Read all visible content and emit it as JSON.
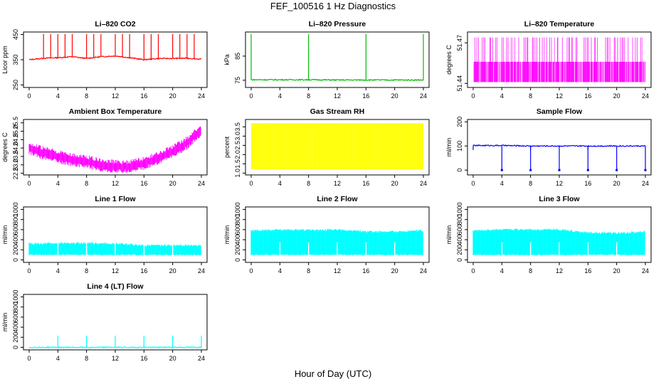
{
  "page": {
    "title": "FEF_100516  1 Hz Diagnostics",
    "xlabel": "Hour of Day (UTC)"
  },
  "chart_data": [
    {
      "id": "li820-co2",
      "type": "line",
      "title": "Li–820 CO2",
      "ylabel": "Licor ppm",
      "color": "#ff0000",
      "xlim": [
        0,
        24
      ],
      "ylim": [
        240,
        460
      ],
      "xticks": [
        0,
        4,
        8,
        12,
        16,
        20,
        24
      ],
      "yticks": [
        250,
        350,
        450
      ],
      "series": [
        {
          "x": [
            0,
            2,
            4,
            6,
            8,
            10,
            12,
            14,
            16,
            18,
            20,
            22,
            24
          ],
          "y": [
            350,
            356,
            358,
            362,
            355,
            362,
            365,
            358,
            350,
            355,
            355,
            356,
            352
          ]
        }
      ],
      "spikes": [
        2,
        3,
        4,
        5,
        6,
        8,
        9,
        10,
        12,
        13,
        14,
        16,
        17,
        18,
        20,
        21,
        22,
        23
      ]
    },
    {
      "id": "li820-pressure",
      "type": "line",
      "title": "Li–820 Pressure",
      "ylabel": "kPa",
      "color": "#00bb00",
      "xlim": [
        0,
        24
      ],
      "ylim": [
        72,
        95
      ],
      "xticks": [
        0,
        4,
        8,
        12,
        16,
        20,
        24
      ],
      "yticks": [
        75,
        85
      ],
      "series": [
        {
          "x": [
            0,
            4,
            8,
            12,
            16,
            20,
            24
          ],
          "y": [
            75.2,
            75.2,
            75.2,
            75.1,
            75.1,
            75.1,
            75.1
          ]
        }
      ],
      "spikes": [
        0,
        8,
        16,
        24
      ]
    },
    {
      "id": "li820-temperature",
      "type": "line",
      "title": "Li–820 Temperature",
      "ylabel": "degrees C",
      "color": "#ff00ff",
      "xlim": [
        0,
        24
      ],
      "ylim": [
        51.437,
        51.478
      ],
      "xticks": [
        0,
        4,
        8,
        12,
        16,
        20,
        24
      ],
      "yticks": [
        51.44,
        51.47
      ],
      "series": [
        {
          "x": [
            0,
            24
          ],
          "y": [
            51.445,
            51.445
          ]
        }
      ],
      "band": [
        51.441,
        51.456
      ]
    },
    {
      "id": "ambient-box-temperature",
      "type": "line",
      "title": "Ambient Box Temperature",
      "ylabel": "degrees C",
      "color": "#ff00ff",
      "xlim": [
        0,
        24
      ],
      "ylim": [
        22.4,
        25.7
      ],
      "xticks": [
        0,
        4,
        8,
        12,
        16,
        20,
        24
      ],
      "yticks": [
        22.5,
        23.0,
        23.5,
        24.0,
        24.5,
        25.0,
        25.5
      ],
      "series": [
        {
          "x": [
            0,
            2,
            4,
            6,
            8,
            10,
            12,
            14,
            16,
            18,
            20,
            22,
            24
          ],
          "y": [
            24.0,
            23.7,
            23.5,
            23.3,
            23.2,
            23.0,
            22.9,
            22.9,
            23.1,
            23.4,
            23.8,
            24.3,
            25.1
          ]
        }
      ]
    },
    {
      "id": "gas-stream-rh",
      "type": "line",
      "title": "Gas Stream RH",
      "ylabel": "percent",
      "color": "#ffff00",
      "xlim": [
        0,
        24
      ],
      "ylim": [
        0.9,
        3.9
      ],
      "xticks": [
        0,
        4,
        8,
        12,
        16,
        20,
        24
      ],
      "yticks": [
        1.0,
        1.5,
        2.0,
        2.5,
        3.0,
        3.5
      ],
      "series": [
        {
          "x": [
            0,
            24
          ],
          "y": [
            3.5,
            3.5
          ]
        }
      ],
      "band": [
        1.2,
        3.7
      ]
    },
    {
      "id": "sample-flow",
      "type": "line",
      "title": "Sample Flow",
      "ylabel": "ml/min",
      "color": "#0000ff",
      "xlim": [
        0,
        24
      ],
      "ylim": [
        -20,
        210
      ],
      "xticks": [
        0,
        4,
        8,
        12,
        16,
        20,
        24
      ],
      "yticks": [
        0,
        100,
        200
      ],
      "series": [
        {
          "x": [
            0,
            4,
            8,
            12,
            16,
            20,
            24
          ],
          "y": [
            102,
            102,
            100,
            100,
            100,
            100,
            100
          ]
        }
      ],
      "dips": [
        4,
        8,
        12,
        16,
        20,
        24
      ],
      "spikes": [
        0,
        8,
        16
      ]
    },
    {
      "id": "line-1-flow",
      "type": "line",
      "title": "Line 1 Flow",
      "ylabel": "ml/min",
      "color": "#00ffff",
      "xlim": [
        0,
        24
      ],
      "ylim": [
        -50,
        1050
      ],
      "xticks": [
        0,
        4,
        8,
        12,
        16,
        20,
        24
      ],
      "yticks": [
        0,
        200,
        400,
        600,
        800,
        1000
      ],
      "series": [
        {
          "x": [
            0,
            4,
            8,
            12,
            16,
            20,
            24
          ],
          "y": [
            300,
            310,
            310,
            305,
            270,
            270,
            270
          ]
        }
      ]
    },
    {
      "id": "line-2-flow",
      "type": "line",
      "title": "Line 2 Flow",
      "ylabel": "ml/min",
      "color": "#00ffff",
      "xlim": [
        0,
        24
      ],
      "ylim": [
        -50,
        1050
      ],
      "xticks": [
        0,
        4,
        8,
        12,
        16,
        20,
        24
      ],
      "yticks": [
        0,
        200,
        400,
        600,
        800,
        1000
      ],
      "series": [
        {
          "x": [
            0,
            4,
            8,
            12,
            16,
            20,
            24
          ],
          "y": [
            560,
            580,
            570,
            580,
            540,
            540,
            560
          ]
        }
      ]
    },
    {
      "id": "line-3-flow",
      "type": "line",
      "title": "Line 3 Flow",
      "ylabel": "ml/min",
      "color": "#00ffff",
      "xlim": [
        0,
        24
      ],
      "ylim": [
        -50,
        1050
      ],
      "xticks": [
        0,
        4,
        8,
        12,
        16,
        20,
        24
      ],
      "yticks": [
        0,
        200,
        400,
        600,
        800,
        1000
      ],
      "series": [
        {
          "x": [
            0,
            4,
            8,
            12,
            16,
            20,
            24
          ],
          "y": [
            560,
            580,
            580,
            580,
            520,
            510,
            540
          ]
        }
      ]
    },
    {
      "id": "line-4-lt-flow",
      "type": "line",
      "title": "Line 4 (LT) Flow",
      "ylabel": "ml/min",
      "color": "#00ffff",
      "xlim": [
        0,
        24
      ],
      "ylim": [
        -50,
        1050
      ],
      "xticks": [
        0,
        4,
        8,
        12,
        16,
        20,
        24
      ],
      "yticks": [
        0,
        200,
        400,
        600,
        800,
        1000
      ],
      "series": [
        {
          "x": [
            0,
            4,
            8,
            12,
            16,
            20,
            24
          ],
          "y": [
            0,
            0,
            0,
            0,
            0,
            0,
            0
          ]
        }
      ],
      "spikes": [
        4,
        8,
        12,
        16,
        20,
        24
      ]
    }
  ]
}
